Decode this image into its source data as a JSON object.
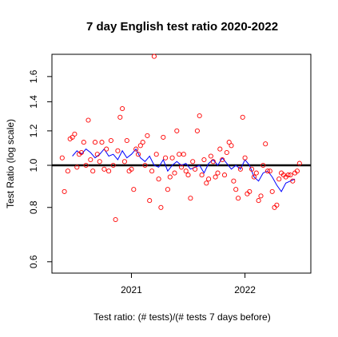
{
  "chart_data": {
    "type": "scatter",
    "title": "7 day English test ratio 2020-2022",
    "xlabel": "Test ratio: (# tests)/(# tests 7 days before)",
    "ylabel": "Test Ratio (log scale)",
    "y_scale": "log",
    "xlim": [
      2020.3,
      2022.58
    ],
    "ylim": [
      0.565,
      1.8
    ],
    "x_ticks": [
      {
        "value": 2021,
        "label": "2021"
      },
      {
        "value": 2022,
        "label": "2022"
      }
    ],
    "y_ticks": [
      {
        "value": 0.6,
        "label": "0.6"
      },
      {
        "value": 0.8,
        "label": "0.8"
      },
      {
        "value": 1.0,
        "label": "1.0"
      },
      {
        "value": 1.2,
        "label": "1.2"
      },
      {
        "value": 1.4,
        "label": "1.4"
      },
      {
        "value": 1.6,
        "label": "1.6"
      }
    ],
    "reference_line": {
      "y": 1.0,
      "color": "#000000"
    },
    "colors": {
      "points": "#ff0000",
      "smooth": "#0000ff",
      "reference": "#000000"
    },
    "series": [
      {
        "type": "scatter",
        "marker": "open-circle",
        "x": [
          2020.39,
          2020.41,
          2020.44,
          2020.46,
          2020.48,
          2020.5,
          2020.52,
          2020.54,
          2020.56,
          2020.58,
          2020.6,
          2020.62,
          2020.64,
          2020.66,
          2020.68,
          2020.7,
          2020.72,
          2020.74,
          2020.76,
          2020.78,
          2020.8,
          2020.82,
          2020.84,
          2020.86,
          2020.88,
          2020.9,
          2020.92,
          2020.94,
          2020.96,
          2020.98,
          2021.0,
          2021.02,
          2021.04,
          2021.06,
          2021.08,
          2021.1,
          2021.12,
          2021.14,
          2021.16,
          2021.18,
          2021.2,
          2021.22,
          2021.24,
          2021.26,
          2021.28,
          2021.3,
          2021.32,
          2021.34,
          2021.36,
          2021.38,
          2021.4,
          2021.42,
          2021.44,
          2021.46,
          2021.48,
          2021.5,
          2021.52,
          2021.54,
          2021.56,
          2021.58,
          2021.6,
          2021.62,
          2021.64,
          2021.66,
          2021.68,
          2021.7,
          2021.72,
          2021.74,
          2021.76,
          2021.78,
          2021.8,
          2021.82,
          2021.84,
          2021.86,
          2021.88,
          2021.9,
          2021.92,
          2021.94,
          2021.96,
          2021.98,
          2022.0,
          2022.02,
          2022.04,
          2022.06,
          2022.08,
          2022.1,
          2022.12,
          2022.14,
          2022.16,
          2022.18,
          2022.2,
          2022.22,
          2022.24,
          2022.26,
          2022.28,
          2022.3,
          2022.32,
          2022.34,
          2022.36,
          2022.38,
          2022.4,
          2022.42,
          2022.44,
          2022.46,
          2022.48
        ],
        "y": [
          1.04,
          0.87,
          0.97,
          1.15,
          1.16,
          1.18,
          0.99,
          1.06,
          1.07,
          1.13,
          1.0,
          1.27,
          1.03,
          0.97,
          1.13,
          1.06,
          1.02,
          1.13,
          0.98,
          1.09,
          0.97,
          1.14,
          1.0,
          0.75,
          1.08,
          1.29,
          1.35,
          1.02,
          1.14,
          0.97,
          0.98,
          0.88,
          1.09,
          1.06,
          1.11,
          1.13,
          1.0,
          1.17,
          0.83,
          0.97,
          1.78,
          1.06,
          0.93,
          0.8,
          1.16,
          1.04,
          0.88,
          0.94,
          1.04,
          0.96,
          1.2,
          1.06,
          0.99,
          1.06,
          0.97,
          0.95,
          0.84,
          1.02,
          0.98,
          1.2,
          1.3,
          0.95,
          1.03,
          0.91,
          0.93,
          1.05,
          1.02,
          0.94,
          0.96,
          1.09,
          1.03,
          0.95,
          1.07,
          1.13,
          1.11,
          0.92,
          0.88,
          0.84,
          0.98,
          1.29,
          1.04,
          0.86,
          0.87,
          0.98,
          0.94,
          0.96,
          0.83,
          0.85,
          1.0,
          1.12,
          0.97,
          0.97,
          0.87,
          0.8,
          0.81,
          0.93,
          0.96,
          0.95,
          0.94,
          0.95,
          0.95,
          0.92,
          0.96,
          0.97,
          1.01
        ]
      },
      {
        "type": "line",
        "x": [
          2020.48,
          2020.52,
          2020.56,
          2020.6,
          2020.64,
          2020.68,
          2020.72,
          2020.76,
          2020.8,
          2020.84,
          2020.88,
          2020.92,
          2020.96,
          2021.0,
          2021.04,
          2021.08,
          2021.12,
          2021.16,
          2021.2,
          2021.24,
          2021.28,
          2021.32,
          2021.36,
          2021.4,
          2021.44,
          2021.48,
          2021.52,
          2021.56,
          2021.6,
          2021.64,
          2021.68,
          2021.72,
          2021.76,
          2021.8,
          2021.84,
          2021.88,
          2021.92,
          2021.96,
          2022.0,
          2022.04,
          2022.08,
          2022.12,
          2022.16,
          2022.2,
          2022.24,
          2022.28,
          2022.32,
          2022.36,
          2022.4,
          2022.44
        ],
        "y": [
          1.05,
          1.08,
          1.06,
          1.09,
          1.07,
          1.04,
          1.06,
          1.09,
          1.05,
          1.06,
          1.03,
          1.08,
          1.04,
          1.06,
          1.09,
          1.04,
          1.02,
          1.05,
          1.0,
          0.99,
          1.03,
          0.97,
          1.0,
          1.02,
          1.0,
          1.01,
          0.98,
          0.99,
          1.0,
          0.96,
          1.01,
          1.03,
          1.0,
          1.04,
          1.01,
          0.98,
          1.0,
          0.98,
          1.03,
          1.0,
          0.94,
          0.92,
          0.96,
          0.97,
          0.94,
          0.9,
          0.87,
          0.91,
          0.92,
          0.93
        ]
      }
    ]
  }
}
